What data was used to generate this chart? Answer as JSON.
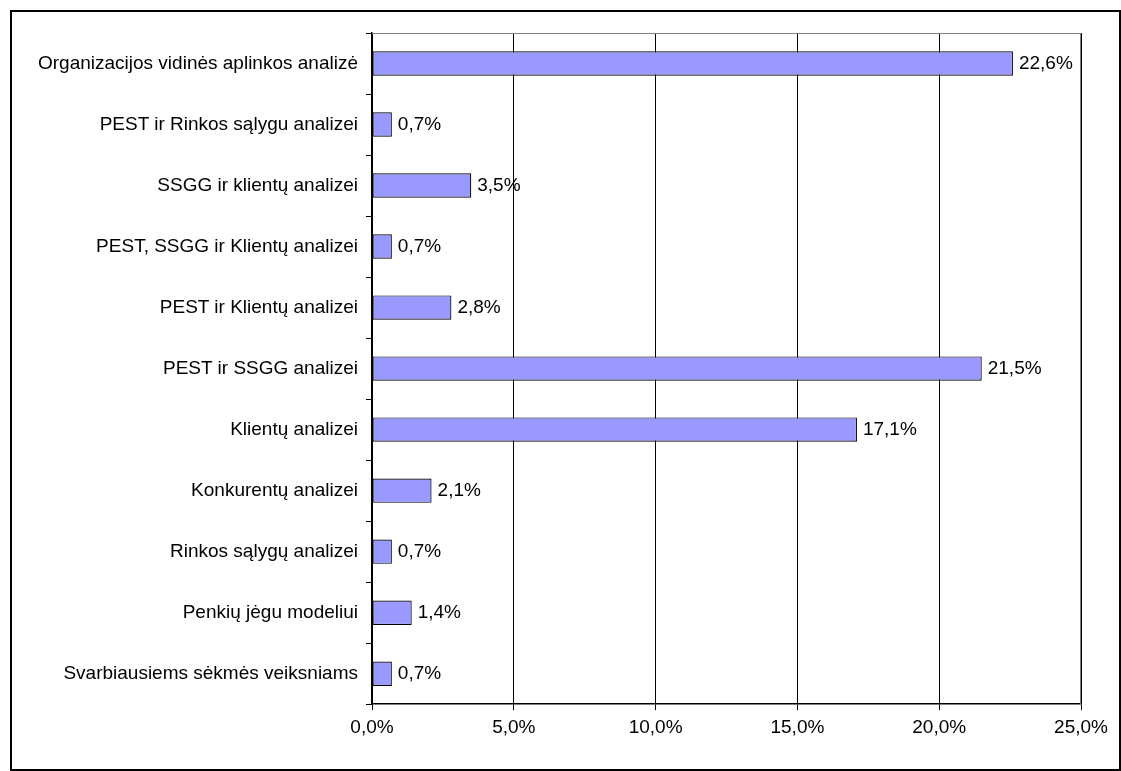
{
  "chart_data": {
    "type": "bar",
    "orientation": "horizontal",
    "categories": [
      "Organizacijos vidinės aplinkos analizė",
      "PEST ir Rinkos sąlygu analizei",
      "SSGG ir klientų analizei",
      "PEST, SSGG ir Klientų analizei",
      "PEST ir Klientų analizei",
      "PEST ir SSGG analizei",
      "Klientų analizei",
      "Konkurentų analizei",
      "Rinkos sąlygų analizei",
      "Penkių jėgu modeliui",
      "Svarbiausiems sėkmės veiksniams"
    ],
    "values": [
      22.6,
      0.7,
      3.5,
      0.7,
      2.8,
      21.5,
      17.1,
      2.1,
      0.7,
      1.4,
      0.7
    ],
    "value_labels": [
      "22,6%",
      "0,7%",
      "3,5%",
      "0,7%",
      "2,8%",
      "21,5%",
      "17,1%",
      "2,1%",
      "0,7%",
      "1,4%",
      "0,7%"
    ],
    "color": "#9999ff",
    "xlim": [
      0,
      25
    ],
    "xticks": [
      {
        "value": 0,
        "label": "0,0%"
      },
      {
        "value": 5,
        "label": "5,0%"
      },
      {
        "value": 10,
        "label": "10,0%"
      },
      {
        "value": 15,
        "label": "15,0%"
      },
      {
        "value": 20,
        "label": "20,0%"
      },
      {
        "value": 25,
        "label": "25,0%"
      }
    ],
    "grid": "x"
  }
}
